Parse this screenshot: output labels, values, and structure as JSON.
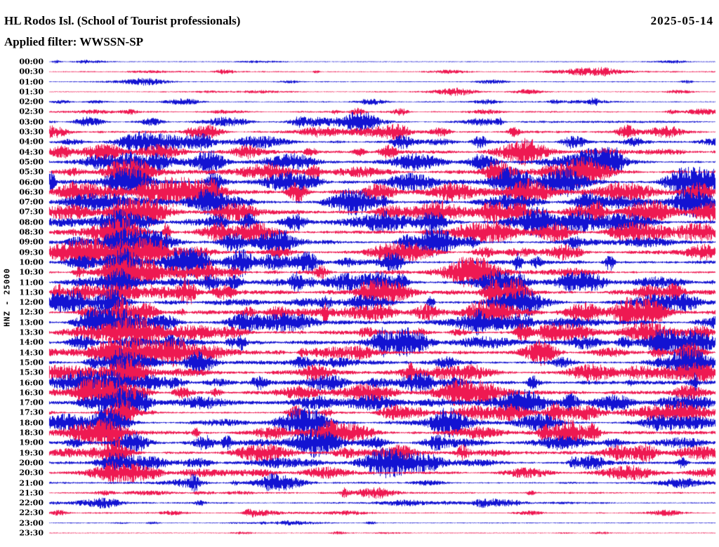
{
  "header": {
    "title": "HL Rodos Isl. (School of Tourist professionals)",
    "date": "2025-05-14",
    "filter_line": "Applied filter: WWSSN-SP"
  },
  "axis": {
    "station_label": "HNZ - 25000",
    "station": "HNZ",
    "scale": "25000"
  },
  "chart_data": {
    "type": "line",
    "subtype": "helicorder-seismogram",
    "title": "HL Rodos Isl. (School of Tourist professionals)",
    "date": "2025-05-14",
    "filter": "WWSSN-SP",
    "minutes_per_row": 30,
    "start_time": "00:00",
    "end_time": "23:30",
    "colors": {
      "blue": "#1313d2",
      "red": "#ee1952"
    },
    "rows": [
      {
        "time": "00:00",
        "color": "blue",
        "activity": 0.14
      },
      {
        "time": "00:30",
        "color": "red",
        "activity": 0.22
      },
      {
        "time": "01:00",
        "color": "blue",
        "activity": 0.15
      },
      {
        "time": "01:30",
        "color": "red",
        "activity": 0.18
      },
      {
        "time": "02:00",
        "color": "blue",
        "activity": 0.22
      },
      {
        "time": "02:30",
        "color": "red",
        "activity": 0.26
      },
      {
        "time": "03:00",
        "color": "blue",
        "activity": 0.34
      },
      {
        "time": "03:30",
        "color": "red",
        "activity": 0.42
      },
      {
        "time": "04:00",
        "color": "blue",
        "activity": 0.48
      },
      {
        "time": "04:30",
        "color": "red",
        "activity": 0.52
      },
      {
        "time": "05:00",
        "color": "blue",
        "activity": 0.58
      },
      {
        "time": "05:30",
        "color": "red",
        "activity": 0.62
      },
      {
        "time": "06:00",
        "color": "blue",
        "activity": 0.72
      },
      {
        "time": "06:30",
        "color": "red",
        "activity": 0.7
      },
      {
        "time": "07:00",
        "color": "blue",
        "activity": 0.66
      },
      {
        "time": "07:30",
        "color": "red",
        "activity": 0.68
      },
      {
        "time": "08:00",
        "color": "blue",
        "activity": 0.64
      },
      {
        "time": "08:30",
        "color": "red",
        "activity": 0.66
      },
      {
        "time": "09:00",
        "color": "blue",
        "activity": 0.68
      },
      {
        "time": "09:30",
        "color": "red",
        "activity": 0.66
      },
      {
        "time": "10:00",
        "color": "blue",
        "activity": 0.66
      },
      {
        "time": "10:30",
        "color": "red",
        "activity": 0.64
      },
      {
        "time": "11:00",
        "color": "blue",
        "activity": 0.68
      },
      {
        "time": "11:30",
        "color": "red",
        "activity": 0.66
      },
      {
        "time": "12:00",
        "color": "blue",
        "activity": 0.64
      },
      {
        "time": "12:30",
        "color": "red",
        "activity": 0.66
      },
      {
        "time": "13:00",
        "color": "blue",
        "activity": 0.66
      },
      {
        "time": "13:30",
        "color": "red",
        "activity": 0.62
      },
      {
        "time": "14:00",
        "color": "blue",
        "activity": 0.66
      },
      {
        "time": "14:30",
        "color": "red",
        "activity": 0.64
      },
      {
        "time": "15:00",
        "color": "blue",
        "activity": 0.62
      },
      {
        "time": "15:30",
        "color": "red",
        "activity": 0.6
      },
      {
        "time": "16:00",
        "color": "blue",
        "activity": 0.6
      },
      {
        "time": "16:30",
        "color": "red",
        "activity": 0.58
      },
      {
        "time": "17:00",
        "color": "blue",
        "activity": 0.56
      },
      {
        "time": "17:30",
        "color": "red",
        "activity": 0.58
      },
      {
        "time": "18:00",
        "color": "blue",
        "activity": 0.58
      },
      {
        "time": "18:30",
        "color": "red",
        "activity": 0.56
      },
      {
        "time": "19:00",
        "color": "blue",
        "activity": 0.5
      },
      {
        "time": "19:30",
        "color": "red",
        "activity": 0.52
      },
      {
        "time": "20:00",
        "color": "blue",
        "activity": 0.5
      },
      {
        "time": "20:30",
        "color": "red",
        "activity": 0.4
      },
      {
        "time": "21:00",
        "color": "blue",
        "activity": 0.34
      },
      {
        "time": "21:30",
        "color": "red",
        "activity": 0.26
      },
      {
        "time": "22:00",
        "color": "blue",
        "activity": 0.26
      },
      {
        "time": "22:30",
        "color": "red",
        "activity": 0.24
      },
      {
        "time": "23:00",
        "color": "blue",
        "activity": 0.15
      },
      {
        "time": "23:30",
        "color": "red",
        "activity": 0.12
      }
    ]
  }
}
